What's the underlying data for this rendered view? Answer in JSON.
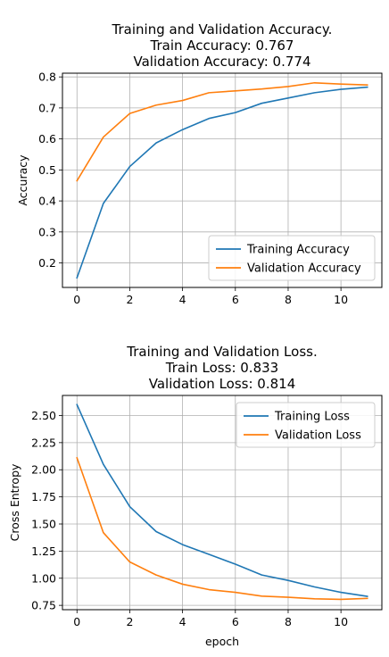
{
  "chart_data": [
    {
      "type": "line",
      "title_lines": [
        "Training and Validation Accuracy.",
        "Train Accuracy: 0.767",
        "Validation Accuracy: 0.774"
      ],
      "xlabel": "",
      "ylabel": "Accuracy",
      "xlim": [
        -0.55,
        11.55
      ],
      "ylim": [
        0.121,
        0.812
      ],
      "xticks": [
        0,
        2,
        4,
        6,
        8,
        10
      ],
      "yticks": [
        0.2,
        0.3,
        0.4,
        0.5,
        0.6,
        0.7,
        0.8
      ],
      "ytick_labels": [
        "0.2",
        "0.3",
        "0.4",
        "0.5",
        "0.6",
        "0.7",
        "0.8"
      ],
      "grid": true,
      "legend_position": "lower-right",
      "x": [
        0,
        1,
        2,
        3,
        4,
        5,
        6,
        7,
        8,
        9,
        10,
        11
      ],
      "series": [
        {
          "name": "Training Accuracy",
          "color": "#1f77b4",
          "values": [
            0.152,
            0.392,
            0.511,
            0.587,
            0.63,
            0.666,
            0.685,
            0.715,
            0.732,
            0.749,
            0.76,
            0.767
          ]
        },
        {
          "name": "Validation Accuracy",
          "color": "#ff7f0e",
          "values": [
            0.465,
            0.606,
            0.682,
            0.709,
            0.724,
            0.749,
            0.755,
            0.761,
            0.769,
            0.781,
            0.777,
            0.774
          ]
        }
      ]
    },
    {
      "type": "line",
      "title_lines": [
        "Training and Validation Loss.",
        "Train Loss: 0.833",
        "Validation Loss: 0.814"
      ],
      "xlabel": "epoch",
      "ylabel": "Cross Entropy",
      "xlim": [
        -0.55,
        11.55
      ],
      "ylim": [
        0.71,
        2.685
      ],
      "xticks": [
        0,
        2,
        4,
        6,
        8,
        10
      ],
      "yticks": [
        0.75,
        1.0,
        1.25,
        1.5,
        1.75,
        2.0,
        2.25,
        2.5
      ],
      "ytick_labels": [
        "0.75",
        "1.00",
        "1.25",
        "1.50",
        "1.75",
        "2.00",
        "2.25",
        "2.50"
      ],
      "grid": true,
      "legend_position": "upper-right",
      "x": [
        0,
        1,
        2,
        3,
        4,
        5,
        6,
        7,
        8,
        9,
        10,
        11
      ],
      "series": [
        {
          "name": "Training Loss",
          "color": "#1f77b4",
          "values": [
            2.6,
            2.05,
            1.66,
            1.43,
            1.31,
            1.22,
            1.13,
            1.03,
            0.98,
            0.92,
            0.87,
            0.833
          ]
        },
        {
          "name": "Validation Loss",
          "color": "#ff7f0e",
          "values": [
            2.11,
            1.42,
            1.15,
            1.03,
            0.945,
            0.895,
            0.87,
            0.835,
            0.825,
            0.81,
            0.805,
            0.814
          ]
        }
      ]
    }
  ]
}
